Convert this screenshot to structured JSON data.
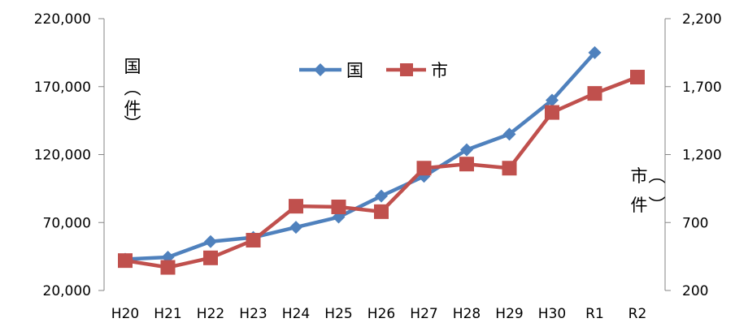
{
  "chart_data": {
    "type": "line",
    "categories": [
      "H20",
      "H21",
      "H22",
      "H23",
      "H24",
      "H25",
      "H26",
      "H27",
      "H28",
      "H29",
      "H30",
      "R1",
      "R2"
    ],
    "series": [
      {
        "name": "国",
        "axis": "left",
        "color": "#4F81BD",
        "marker": "diamond",
        "values": [
          43000,
          44500,
          56000,
          59000,
          66500,
          74000,
          89500,
          104000,
          123500,
          135000,
          160000,
          195000,
          null
        ]
      },
      {
        "name": "市",
        "axis": "right",
        "color": "#C0504D",
        "marker": "square",
        "values": [
          420,
          370,
          440,
          570,
          820,
          815,
          780,
          1100,
          1130,
          1100,
          1510,
          1650,
          1770
        ]
      }
    ],
    "left_axis": {
      "ylim": [
        20000,
        220000
      ],
      "ticks": [
        "20,000",
        "70,000",
        "120,000",
        "170,000",
        "220,000"
      ],
      "label_chars": [
        "国",
        "︵",
        "件",
        "︶"
      ]
    },
    "right_axis": {
      "ylim": [
        200,
        2200
      ],
      "ticks": [
        "200",
        "700",
        "1,200",
        "1,700",
        "2,200"
      ],
      "label_chars": [
        "市",
        "︵",
        "件",
        "︶"
      ]
    },
    "legend_position": "top-center",
    "grid": false
  }
}
